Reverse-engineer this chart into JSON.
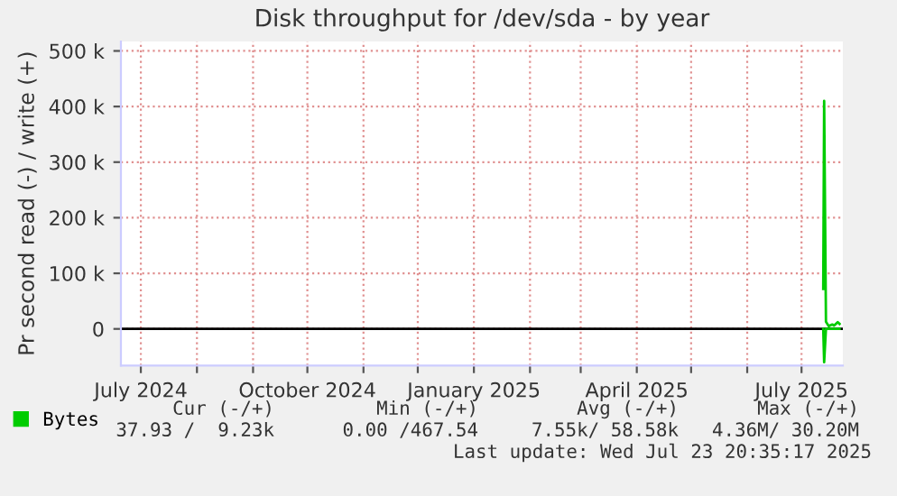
{
  "chart_data": {
    "type": "line",
    "title": "Disk throughput for /dev/sda - by year",
    "ylabel": "Pr second read (-) / write (+)",
    "series": [
      {
        "name": "Bytes",
        "color": "#00cc00",
        "x": [
          "2025-07-13",
          "2025-07-13T12:00",
          "2025-07-14T12:00",
          "2025-07-16",
          "2025-07-18",
          "2025-07-19",
          "2025-07-21",
          "2025-07-22"
        ],
        "values": [
          72000,
          410000,
          13000,
          5000,
          8000,
          6000,
          12000,
          9000
        ]
      },
      {
        "color": "#00cc00",
        "x": [
          "2025-07-13",
          "2025-07-13T12:00",
          "2025-07-14T12:00",
          "2025-07-16",
          "2025-07-18",
          "2025-07-19",
          "2025-07-21",
          "2025-07-22"
        ],
        "values": [
          0,
          -60000,
          0,
          0,
          0,
          0,
          0,
          0
        ]
      }
    ],
    "xlim": [
      "2024-06-20",
      "2025-07-23T20:00"
    ],
    "xticks": [
      {
        "value": "2024-07-01",
        "label": "July 2024"
      },
      {
        "value": "2024-08-01",
        "label": null
      },
      {
        "value": "2024-09-01",
        "label": null
      },
      {
        "value": "2024-10-01",
        "label": "October 2024"
      },
      {
        "value": "2024-11-01",
        "label": null
      },
      {
        "value": "2024-12-01",
        "label": null
      },
      {
        "value": "2025-01-01",
        "label": "January 2025"
      },
      {
        "value": "2025-02-01",
        "label": null
      },
      {
        "value": "2025-03-01",
        "label": null
      },
      {
        "value": "2025-04-01",
        "label": "April 2025"
      },
      {
        "value": "2025-05-01",
        "label": null
      },
      {
        "value": "2025-06-01",
        "label": null
      },
      {
        "value": "2025-07-01",
        "label": "July 2025"
      }
    ],
    "ylim": [
      -66000,
      517000
    ],
    "yticks": [
      0,
      {
        "value": 100000,
        "label": "100 k"
      },
      {
        "value": 200000,
        "label": "200 k"
      },
      {
        "value": 300000,
        "label": "300 k"
      },
      {
        "value": 400000,
        "label": "400 k"
      },
      {
        "value": 500000,
        "label": "500 k"
      }
    ],
    "ref_lines": [
      {
        "axis": "y",
        "value": 0,
        "color": "#000000"
      }
    ],
    "grid": true,
    "legend": "bottom",
    "annotations": [
      "Cur (-/+)",
      "Min (-/+)",
      "Avg (-/+)",
      "Max (-/+)",
      "37.93 /  9.23k",
      "0.00 /467.54",
      "7.55k/ 58.58k",
      "4.36M/ 30.20M",
      "Last update: Wed Jul 23 20:35:17 2025"
    ]
  }
}
